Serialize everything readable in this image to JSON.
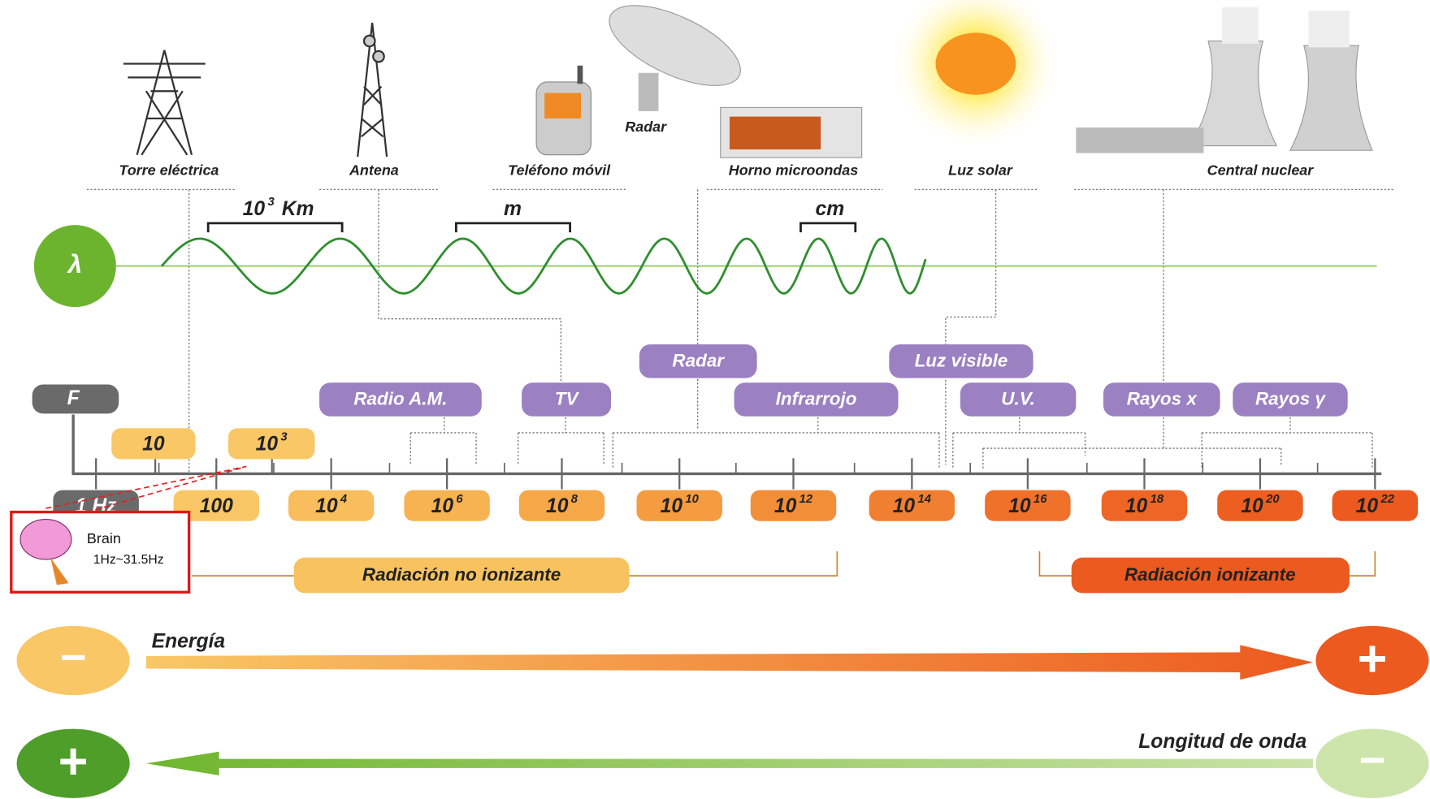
{
  "sources": [
    "Torre eléctrica",
    "Antena",
    "Teléfono móvil",
    "Radar",
    "Horno microondas",
    "Luz solar",
    "Central nuclear"
  ],
  "wavelengths": [
    {
      "base": "10",
      "exp": "3",
      "unit": "Km"
    },
    {
      "unit": "m"
    },
    {
      "unit": "cm"
    }
  ],
  "lambda": "λ",
  "frequency_symbol": "F",
  "upper_frequencies": [
    {
      "base": "10"
    },
    {
      "base": "10",
      "exp": "3"
    }
  ],
  "frequencies": [
    {
      "base": "1 Hz"
    },
    {
      "base": "100"
    },
    {
      "base": "10",
      "exp": "4"
    },
    {
      "base": "10",
      "exp": "6"
    },
    {
      "base": "10",
      "exp": "8"
    },
    {
      "base": "10",
      "exp": "10"
    },
    {
      "base": "10",
      "exp": "12"
    },
    {
      "base": "10",
      "exp": "14"
    },
    {
      "base": "10",
      "exp": "16"
    },
    {
      "base": "10",
      "exp": "18"
    },
    {
      "base": "10",
      "exp": "20"
    },
    {
      "base": "10",
      "exp": "22"
    }
  ],
  "bands": [
    "Radio A.M.",
    "TV",
    "Radar",
    "Infrarrojo",
    "Luz visible",
    "U.V.",
    "Rayos x",
    "Rayos γ"
  ],
  "radiation": [
    "Radiación no ionizante",
    "Radiación ionizante"
  ],
  "energy": {
    "label": "Energía",
    "low": "−",
    "high": "+"
  },
  "wavelength_axis": {
    "label": "Longitud de onda",
    "high": "+",
    "low": "−"
  },
  "brain": {
    "label": "Brain",
    "range": "1Hz~31.5Hz"
  }
}
